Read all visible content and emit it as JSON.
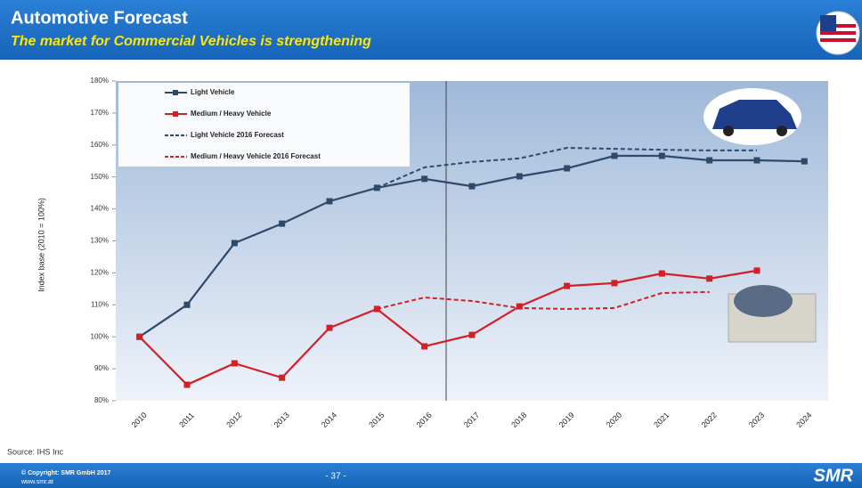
{
  "slide": {
    "title": "Automotive Forecast",
    "subtitle": "The market for Commercial Vehicles is strengthening",
    "source": "Source: IHS Inc",
    "copyright": "© Copyright: SMR GmbH 2017",
    "website": "www.smr.at",
    "page": "- 37 -",
    "logo": "SMR"
  },
  "chart_data": {
    "type": "line",
    "y_label": "Index base (2010 = 100%)",
    "categories": [
      "2010",
      "2011",
      "2012",
      "2013",
      "2014",
      "2015",
      "2016",
      "2017",
      "2018",
      "2019",
      "2020",
      "2021",
      "2022",
      "2023",
      "2024"
    ],
    "series": [
      {
        "name": "Light Vehicle",
        "color": "#2e4a6b",
        "dashed": false,
        "marker": "square",
        "values": [
          100,
          110,
          129.3,
          135.4,
          142.4,
          146.6,
          149.4,
          147.1,
          150.2,
          152.7,
          156.6,
          156.6,
          155.2,
          155.2,
          154.9
        ]
      },
      {
        "name": "Medium / Heavy Vehicle",
        "color": "#d31f26",
        "dashed": false,
        "marker": "square",
        "values": [
          100,
          85,
          91.7,
          87.2,
          102.8,
          108.7,
          97,
          100.6,
          109.5,
          115.9,
          116.8,
          119.8,
          118.2,
          120.7,
          null
        ]
      },
      {
        "name": "Light Vehicle 2016 Forecast",
        "color": "#2e4a6b",
        "dashed": true,
        "marker": "none",
        "values": [
          null,
          null,
          null,
          null,
          null,
          146.6,
          153,
          154.7,
          155.8,
          159.1,
          158.8,
          158.5,
          158.3,
          158.3,
          null
        ]
      },
      {
        "name": "Medium / Heavy Vehicle 2016 Forecast",
        "color": "#d31f26",
        "dashed": true,
        "marker": "none",
        "values": [
          null,
          null,
          null,
          null,
          null,
          108.7,
          112.3,
          111.2,
          109,
          108.7,
          109,
          113.7,
          114,
          null,
          null
        ]
      }
    ],
    "ylim": [
      80,
      180
    ],
    "yticks": [
      {
        "value": 80,
        "label": "80%"
      },
      {
        "value": 90,
        "label": "90%"
      },
      {
        "value": 100,
        "label": "100%"
      },
      {
        "value": 110,
        "label": "110%"
      },
      {
        "value": 120,
        "label": "120%"
      },
      {
        "value": 130,
        "label": "130%"
      },
      {
        "value": 140,
        "label": "140%"
      },
      {
        "value": 150,
        "label": "150%"
      },
      {
        "value": 160,
        "label": "160%"
      },
      {
        "value": 170,
        "label": "170%"
      },
      {
        "value": 180,
        "label": "180%"
      }
    ],
    "grid": false,
    "legend": "upper left"
  }
}
